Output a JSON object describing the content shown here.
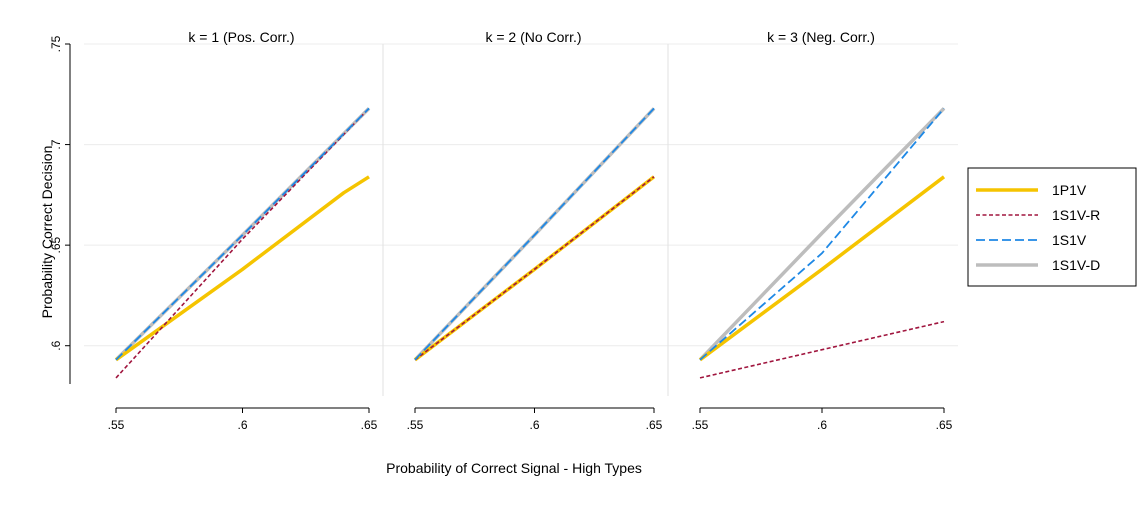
{
  "chart_data": {
    "type": "line",
    "xlabel": "Probability of Correct Signal - High Types",
    "ylabel": "Probability Correct Decision",
    "xlim": [
      0.55,
      0.65
    ],
    "ylim": [
      0.575,
      0.75
    ],
    "x_ticks": [
      ".55",
      ".6",
      ".65"
    ],
    "y_ticks": [
      ".6",
      ".65",
      ".7",
      ".75"
    ],
    "grid": true,
    "legend_position": "right",
    "legend": [
      {
        "name": "1P1V",
        "color": "#F5C400",
        "style": "solid-thick"
      },
      {
        "name": "1S1V-R",
        "color": "#A0153E",
        "style": "dotted"
      },
      {
        "name": "1S1V",
        "color": "#1E88E5",
        "style": "dashed"
      },
      {
        "name": "1S1V-D",
        "color": "#BDBDBD",
        "style": "solid-thick"
      }
    ],
    "panels": [
      {
        "title": "k = 1 (Pos. Corr.)",
        "series": [
          {
            "name": "1S1V-D",
            "x": [
              0.55,
              0.6,
              0.65
            ],
            "y": [
              0.593,
              0.655,
              0.718
            ]
          },
          {
            "name": "1P1V",
            "x": [
              0.55,
              0.6,
              0.64,
              0.65
            ],
            "y": [
              0.593,
              0.638,
              0.676,
              0.684
            ]
          },
          {
            "name": "1S1V-R",
            "x": [
              0.55,
              0.6,
              0.65
            ],
            "y": [
              0.584,
              0.653,
              0.718
            ]
          },
          {
            "name": "1S1V",
            "x": [
              0.55,
              0.6,
              0.65
            ],
            "y": [
              0.593,
              0.655,
              0.718
            ]
          }
        ]
      },
      {
        "title": "k = 2 (No Corr.)",
        "series": [
          {
            "name": "1S1V-D",
            "x": [
              0.55,
              0.6,
              0.65
            ],
            "y": [
              0.593,
              0.655,
              0.718
            ]
          },
          {
            "name": "1P1V",
            "x": [
              0.55,
              0.6,
              0.65
            ],
            "y": [
              0.593,
              0.638,
              0.684
            ]
          },
          {
            "name": "1S1V-R",
            "x": [
              0.55,
              0.6,
              0.65
            ],
            "y": [
              0.593,
              0.638,
              0.684
            ]
          },
          {
            "name": "1S1V",
            "x": [
              0.55,
              0.6,
              0.65
            ],
            "y": [
              0.593,
              0.655,
              0.718
            ]
          }
        ]
      },
      {
        "title": "k = 3 (Neg. Corr.)",
        "series": [
          {
            "name": "1S1V-D",
            "x": [
              0.55,
              0.6,
              0.65
            ],
            "y": [
              0.593,
              0.656,
              0.718
            ]
          },
          {
            "name": "1P1V",
            "x": [
              0.55,
              0.6,
              0.65
            ],
            "y": [
              0.593,
              0.638,
              0.684
            ]
          },
          {
            "name": "1S1V-R",
            "x": [
              0.55,
              0.6,
              0.65
            ],
            "y": [
              0.584,
              0.598,
              0.612
            ]
          },
          {
            "name": "1S1V",
            "x": [
              0.55,
              0.6,
              0.65
            ],
            "y": [
              0.593,
              0.646,
              0.718
            ]
          }
        ]
      }
    ]
  }
}
